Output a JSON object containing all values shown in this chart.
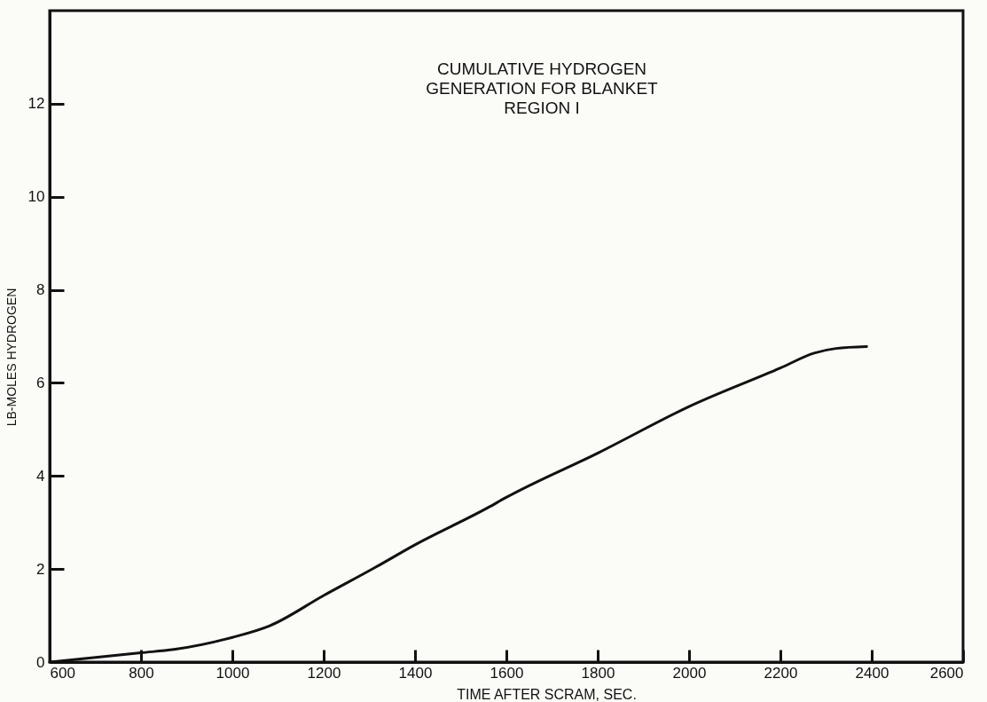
{
  "chart_data": {
    "type": "line",
    "title": "CUMULATIVE HYDROGEN\nGENERATION FOR BLANKET\nREGION I",
    "xlabel": "TIME AFTER SCRAM, SEC.",
    "ylabel": "LB-MOLES HYDROGEN",
    "x": [
      600,
      800,
      872,
      1000,
      1082,
      1200,
      1314,
      1400,
      1560,
      1598,
      1802,
      2002,
      2200,
      2274,
      2322,
      2389
    ],
    "series": [
      {
        "color": "#111111",
        "values": [
          0,
          0.2,
          0.27,
          0.53,
          0.78,
          1.43,
          2.04,
          2.52,
          3.32,
          3.53,
          4.5,
          5.5,
          6.32,
          6.64,
          6.74,
          6.78
        ]
      }
    ],
    "xlim": [
      600,
      2600
    ],
    "xticks": [
      600,
      800,
      1000,
      1200,
      1400,
      1600,
      1800,
      2000,
      2200,
      2400,
      2600
    ],
    "ylim": [
      0,
      14
    ],
    "yticks": [
      0,
      2,
      4,
      6,
      8,
      10,
      12
    ],
    "grid": false,
    "marker": "none",
    "line_style": "solid",
    "legend": false
  }
}
